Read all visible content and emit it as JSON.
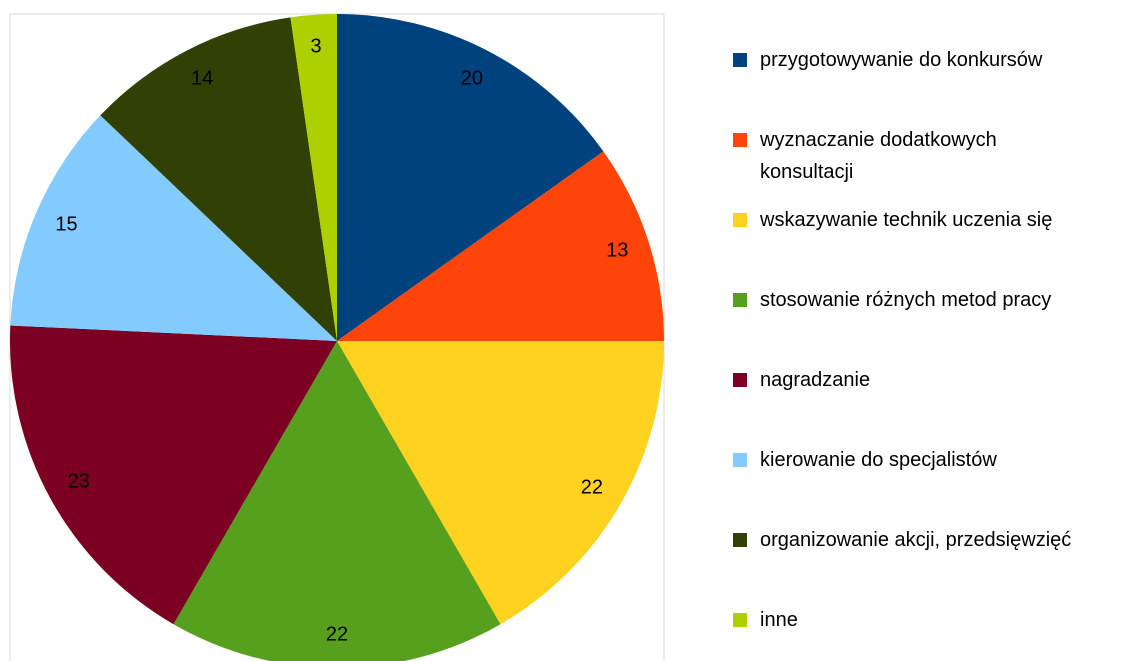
{
  "chart_data": {
    "type": "pie",
    "categories": [
      "przygotowywanie do konkursów",
      "wyznaczanie dodatkowych konsultacji",
      "wskazywanie technik uczenia się",
      "stosowanie różnych metod pracy",
      "nagradzanie",
      "kierowanie do specjalistów",
      "organizowanie akcji, przedsięwzięć",
      "inne"
    ],
    "values": [
      20,
      13,
      22,
      22,
      23,
      15,
      14,
      3
    ],
    "colors": [
      "#00427e",
      "#ff4409",
      "#ffd21f",
      "#57a01e",
      "#7c0021",
      "#83caff",
      "#314004",
      "#aecf00"
    ],
    "legend": "right"
  }
}
